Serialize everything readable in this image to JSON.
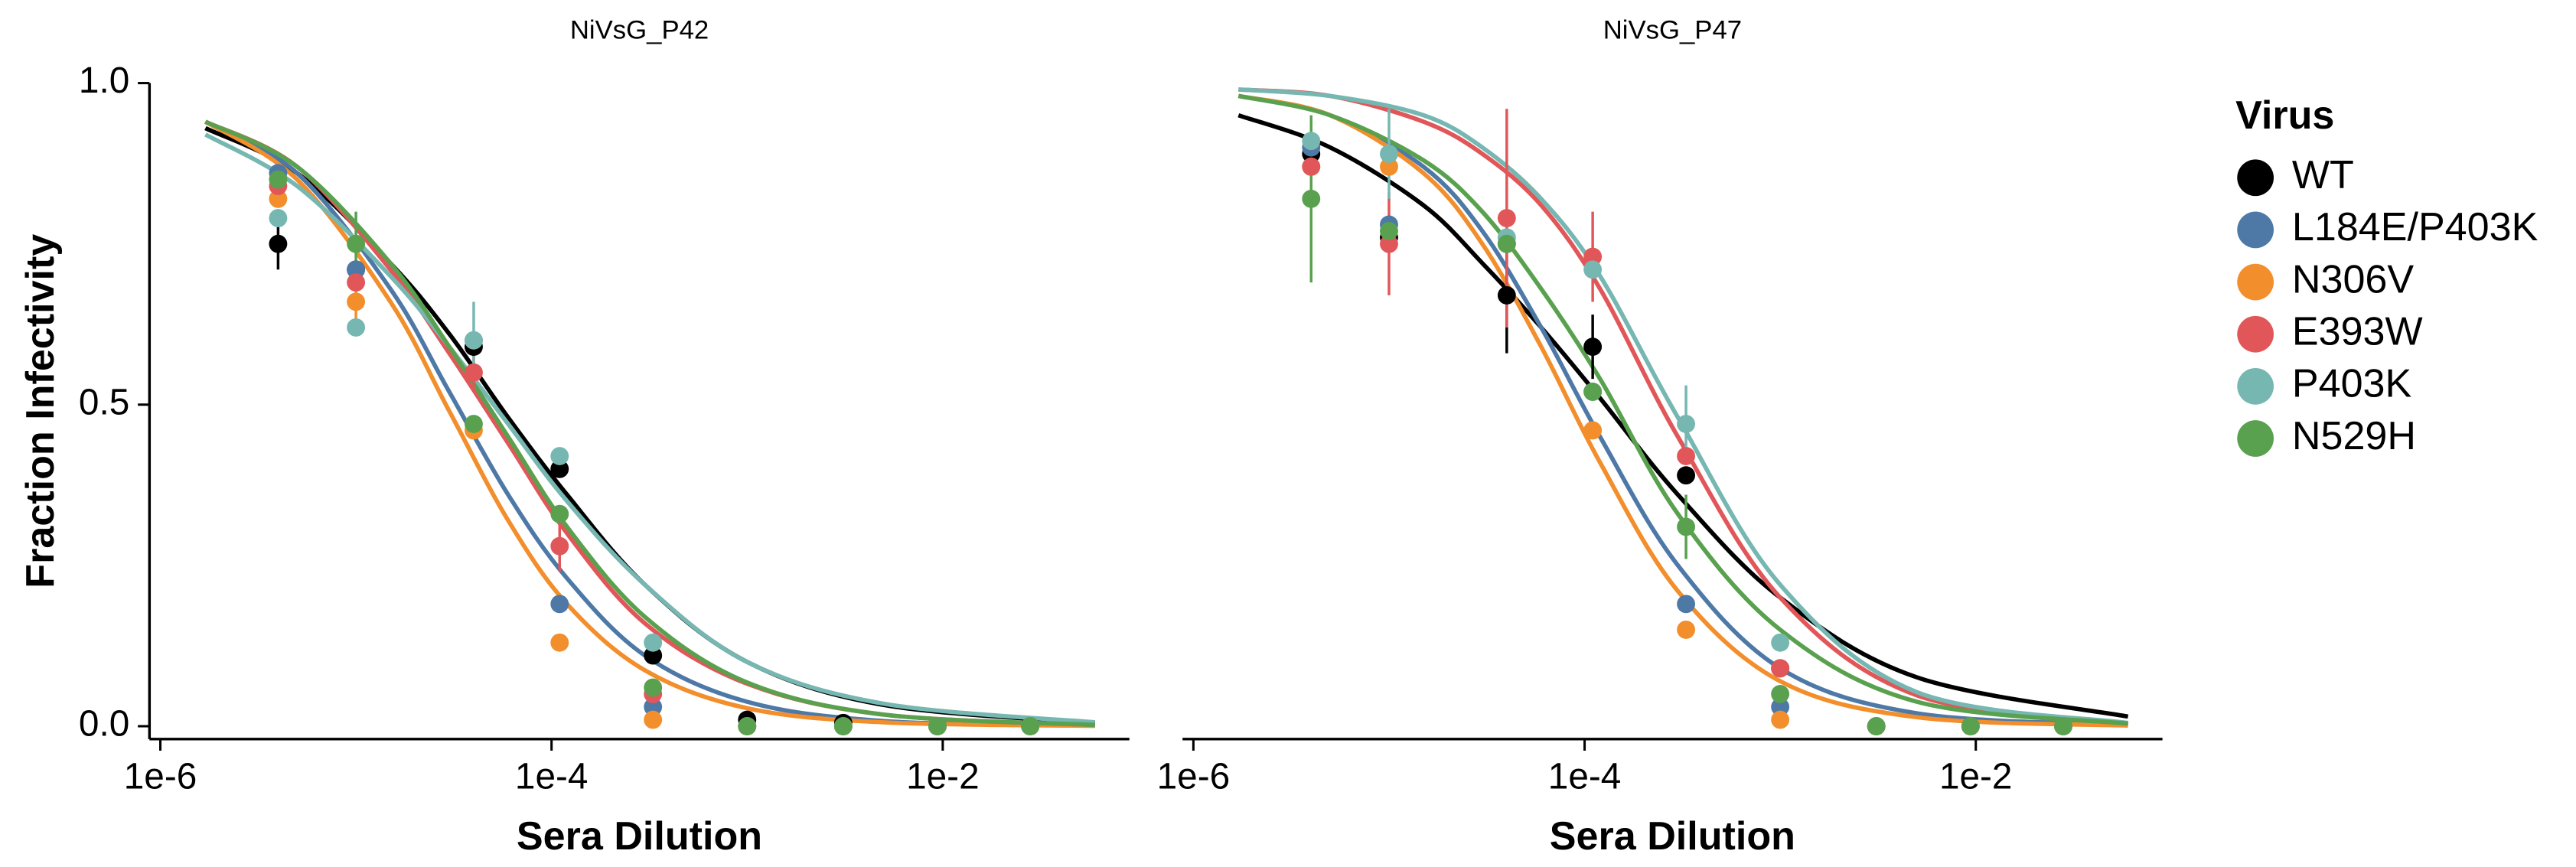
{
  "chart_data": [
    {
      "type": "scatter",
      "title": "NiVsG_P42",
      "xlabel": "Sera Dilution",
      "ylabel": "Fraction Infectivity",
      "xscale": "log",
      "legend_title": "Virus",
      "legend": "right",
      "xlim": [
        8.8e-07,
        0.09
      ],
      "ylim": [
        -0.02,
        1.0
      ],
      "xticks": [
        {
          "value": 1e-06,
          "label": "1e-6"
        },
        {
          "value": 0.0001,
          "label": "1e-4"
        },
        {
          "value": 0.01,
          "label": "1e-2"
        }
      ],
      "yticks": [
        {
          "value": 0,
          "label": "0.0"
        },
        0.5,
        {
          "value": 1,
          "label": "1.0"
        }
      ],
      "x": [
        4e-06,
        1e-05,
        4e-05,
        0.00011,
        0.00033,
        0.001,
        0.0031,
        0.0094,
        0.028
      ],
      "curve_x": [
        1.7e-06,
        5e-06,
        1.5e-05,
        3e-05,
        6e-05,
        0.00012,
        0.0003,
        0.001,
        0.005,
        0.06
      ],
      "series": [
        {
          "name": "WT",
          "color": "#000000",
          "values": [
            0.75,
            0.71,
            0.59,
            0.4,
            0.11,
            0.01,
            0.005,
            0,
            0
          ],
          "errors": [
            0.04,
            null,
            null,
            null,
            null,
            null,
            null,
            null,
            null
          ],
          "curve": [
            0.93,
            0.86,
            0.72,
            0.61,
            0.48,
            0.36,
            0.22,
            0.1,
            0.033,
            0.005
          ]
        },
        {
          "name": "L184E/P403K",
          "color": "#4e79a7",
          "values": [
            0.86,
            0.71,
            0.6,
            0.19,
            0.03,
            0,
            0,
            0,
            0
          ],
          "errors": [
            null,
            null,
            null,
            null,
            null,
            null,
            null,
            null,
            null
          ],
          "curve": [
            0.94,
            0.86,
            0.68,
            0.52,
            0.36,
            0.23,
            0.11,
            0.038,
            0.008,
            0.001
          ]
        },
        {
          "name": "N306V",
          "color": "#f28e2b",
          "values": [
            0.82,
            0.66,
            0.46,
            0.13,
            0.01,
            0,
            0,
            0,
            0
          ],
          "errors": [
            null,
            0.03,
            null,
            null,
            null,
            null,
            null,
            null,
            null
          ],
          "curve": [
            0.94,
            0.85,
            0.66,
            0.49,
            0.32,
            0.19,
            0.087,
            0.028,
            0.006,
            0.0005
          ]
        },
        {
          "name": "E393W",
          "color": "#e15759",
          "values": [
            0.84,
            0.69,
            0.55,
            0.28,
            0.05,
            0,
            0,
            0,
            0
          ],
          "errors": [
            null,
            null,
            0.03,
            0.04,
            null,
            null,
            null,
            null,
            null
          ],
          "curve": [
            0.94,
            0.87,
            0.71,
            0.58,
            0.44,
            0.3,
            0.16,
            0.066,
            0.018,
            0.002
          ]
        },
        {
          "name": "P403K",
          "color": "#76b7b2",
          "values": [
            0.79,
            0.62,
            0.6,
            0.42,
            0.13,
            0,
            0,
            0,
            0
          ],
          "errors": [
            null,
            null,
            0.06,
            null,
            null,
            null,
            null,
            null,
            null
          ],
          "curve": [
            0.92,
            0.84,
            0.7,
            0.59,
            0.47,
            0.35,
            0.22,
            0.1,
            0.035,
            0.006
          ]
        },
        {
          "name": "N529H",
          "color": "#59a14f",
          "values": [
            0.85,
            0.75,
            0.47,
            0.33,
            0.06,
            0,
            0,
            0,
            0
          ],
          "errors": [
            null,
            0.05,
            null,
            null,
            null,
            null,
            null,
            null,
            null
          ],
          "curve": [
            0.94,
            0.87,
            0.72,
            0.59,
            0.45,
            0.31,
            0.17,
            0.068,
            0.018,
            0.002
          ]
        }
      ]
    },
    {
      "type": "scatter",
      "title": "NiVsG_P47",
      "xlabel": "Sera Dilution",
      "xscale": "log",
      "xlim": [
        8.8e-07,
        0.09
      ],
      "ylim": [
        -0.02,
        1.0
      ],
      "xticks": [
        {
          "value": 1e-06,
          "label": "1e-6"
        },
        {
          "value": 0.0001,
          "label": "1e-4"
        },
        {
          "value": 0.01,
          "label": "1e-2"
        }
      ],
      "x": [
        4e-06,
        1e-05,
        4e-05,
        0.00011,
        0.00033,
        0.001,
        0.0031,
        0.0094,
        0.028
      ],
      "curve_x": [
        1.7e-06,
        5e-06,
        1.5e-05,
        3e-05,
        6e-05,
        0.00012,
        0.0003,
        0.001,
        0.005,
        0.06
      ],
      "series": [
        {
          "name": "WT",
          "color": "#000000",
          "values": [
            0.89,
            0.76,
            0.67,
            0.59,
            0.39,
            0.09,
            0,
            0,
            0
          ],
          "errors": [
            null,
            null,
            0.09,
            0.05,
            null,
            null,
            null,
            null,
            null
          ],
          "curve": [
            0.95,
            0.9,
            0.81,
            0.72,
            0.62,
            0.51,
            0.36,
            0.2,
            0.076,
            0.015
          ]
        },
        {
          "name": "L184E/P403K",
          "color": "#4e79a7",
          "values": [
            0.9,
            0.78,
            0.75,
            0.52,
            0.19,
            0.03,
            0,
            0,
            0
          ],
          "errors": [
            null,
            null,
            null,
            null,
            null,
            null,
            null,
            null,
            null
          ],
          "curve": [
            0.98,
            0.95,
            0.87,
            0.77,
            0.62,
            0.45,
            0.25,
            0.09,
            0.02,
            0.002
          ]
        },
        {
          "name": "N306V",
          "color": "#f28e2b",
          "values": [
            0.87,
            0.87,
            0.75,
            0.46,
            0.15,
            0.01,
            0,
            0,
            0
          ],
          "errors": [
            null,
            null,
            null,
            null,
            null,
            null,
            null,
            null,
            null
          ],
          "curve": [
            0.98,
            0.95,
            0.86,
            0.75,
            0.59,
            0.41,
            0.21,
            0.07,
            0.014,
            0.001
          ]
        },
        {
          "name": "E393W",
          "color": "#e15759",
          "values": [
            0.87,
            0.75,
            0.79,
            0.73,
            0.42,
            0.09,
            0,
            0,
            0
          ],
          "errors": [
            null,
            0.08,
            0.17,
            0.07,
            null,
            null,
            null,
            null,
            null
          ],
          "curve": [
            0.99,
            0.98,
            0.94,
            0.89,
            0.81,
            0.68,
            0.45,
            0.2,
            0.048,
            0.004
          ]
        },
        {
          "name": "P403K",
          "color": "#76b7b2",
          "values": [
            0.91,
            0.89,
            0.76,
            0.71,
            0.47,
            0.13,
            0,
            0,
            0
          ],
          "errors": [
            null,
            0.07,
            null,
            null,
            0.06,
            null,
            null,
            null,
            null
          ],
          "curve": [
            0.99,
            0.98,
            0.95,
            0.9,
            0.82,
            0.7,
            0.48,
            0.22,
            0.053,
            0.005
          ]
        },
        {
          "name": "N529H",
          "color": "#59a14f",
          "values": [
            0.82,
            0.77,
            0.75,
            0.52,
            0.31,
            0.05,
            0,
            0,
            0
          ],
          "errors": [
            0.13,
            null,
            null,
            null,
            0.05,
            null,
            null,
            null,
            null
          ],
          "curve": [
            0.98,
            0.95,
            0.88,
            0.8,
            0.68,
            0.54,
            0.33,
            0.15,
            0.038,
            0.004
          ]
        }
      ]
    }
  ]
}
